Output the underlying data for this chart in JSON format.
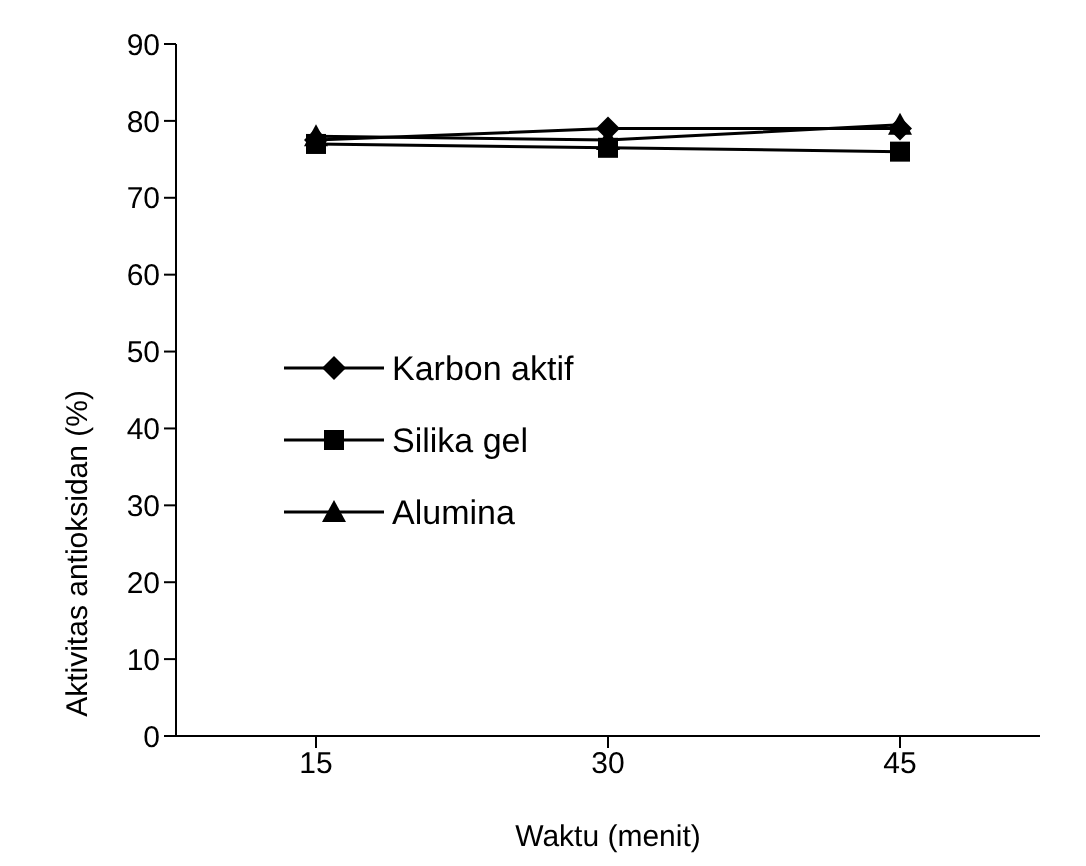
{
  "chart_data": {
    "type": "line",
    "xlabel": "Waktu (menit)",
    "ylabel": "Aktivitas antioksidan (%)",
    "categories": [
      "15",
      "30",
      "45"
    ],
    "series": [
      {
        "name": "Karbon aktif",
        "color": "#000000",
        "marker": "diamond",
        "values": [
          77.5,
          79,
          79
        ]
      },
      {
        "name": "Silika gel",
        "color": "#000000",
        "marker": "square",
        "values": [
          77,
          76.5,
          76
        ]
      },
      {
        "name": "Alumina",
        "color": "#000000",
        "marker": "triangle",
        "values": [
          78,
          77.5,
          79.5
        ]
      }
    ],
    "ylim": [
      0,
      90
    ],
    "yticks": [
      0,
      10,
      20,
      30,
      40,
      50,
      60,
      70,
      80,
      90
    ],
    "grid": false,
    "legend": "left"
  }
}
